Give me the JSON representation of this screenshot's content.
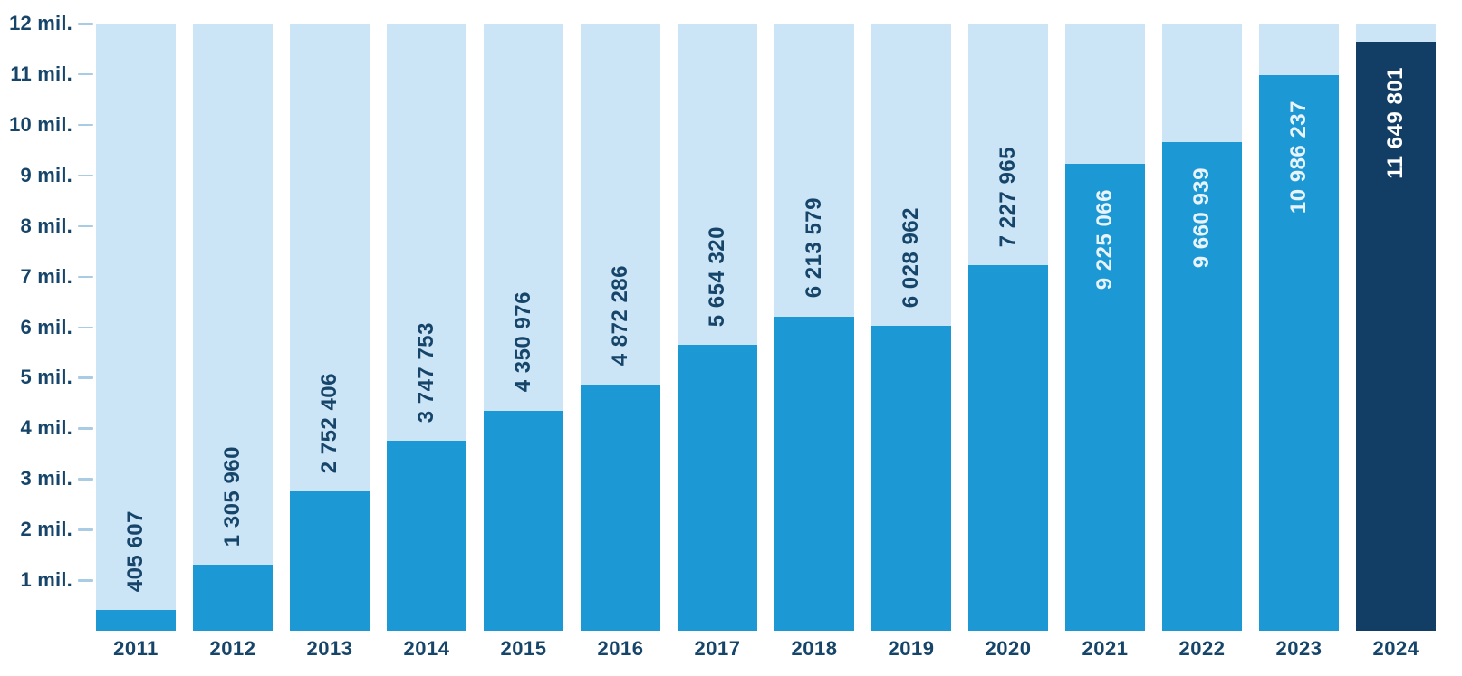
{
  "chart_data": {
    "type": "bar",
    "title": "",
    "xlabel": "",
    "ylabel": "",
    "ylim": [
      0,
      12000000
    ],
    "grid": "off",
    "legend": "none",
    "y_ticks": [
      {
        "label": "12 mil.",
        "value": 12000000
      },
      {
        "label": "11 mil.",
        "value": 11000000
      },
      {
        "label": "10 mil.",
        "value": 10000000
      },
      {
        "label": "9 mil.",
        "value": 9000000
      },
      {
        "label": "8 mil.",
        "value": 8000000
      },
      {
        "label": "7 mil.",
        "value": 7000000
      },
      {
        "label": "6 mil.",
        "value": 6000000
      },
      {
        "label": "5 mil.",
        "value": 5000000
      },
      {
        "label": "4 mil.",
        "value": 4000000
      },
      {
        "label": "3 mil.",
        "value": 3000000
      },
      {
        "label": "2 mil.",
        "value": 2000000
      },
      {
        "label": "1 mil.",
        "value": 1000000
      }
    ],
    "categories": [
      "2011",
      "2012",
      "2013",
      "2014",
      "2015",
      "2016",
      "2017",
      "2018",
      "2019",
      "2020",
      "2021",
      "2022",
      "2023",
      "2024"
    ],
    "values": [
      405607,
      1305960,
      2752406,
      3747753,
      4350976,
      4872286,
      5654320,
      6213579,
      6028962,
      7227965,
      9225066,
      9660939,
      10986237,
      11649801
    ],
    "bars": [
      {
        "year": "2011",
        "value": 405607,
        "label": "405 607",
        "label_position": "outside",
        "color_key": "primary"
      },
      {
        "year": "2012",
        "value": 1305960,
        "label": "1 305 960",
        "label_position": "outside",
        "color_key": "primary"
      },
      {
        "year": "2013",
        "value": 2752406,
        "label": "2 752 406",
        "label_position": "outside",
        "color_key": "primary"
      },
      {
        "year": "2014",
        "value": 3747753,
        "label": "3 747 753",
        "label_position": "outside",
        "color_key": "primary"
      },
      {
        "year": "2015",
        "value": 4350976,
        "label": "4 350 976",
        "label_position": "outside",
        "color_key": "primary"
      },
      {
        "year": "2016",
        "value": 4872286,
        "label": "4 872 286",
        "label_position": "outside",
        "color_key": "primary"
      },
      {
        "year": "2017",
        "value": 5654320,
        "label": "5 654 320",
        "label_position": "outside",
        "color_key": "primary"
      },
      {
        "year": "2018",
        "value": 6213579,
        "label": "6 213 579",
        "label_position": "outside",
        "color_key": "primary"
      },
      {
        "year": "2019",
        "value": 6028962,
        "label": "6 028 962",
        "label_position": "outside",
        "color_key": "primary"
      },
      {
        "year": "2020",
        "value": 7227965,
        "label": "7 227 965",
        "label_position": "outside",
        "color_key": "primary"
      },
      {
        "year": "2021",
        "value": 9225066,
        "label": "9 225 066",
        "label_position": "inside",
        "color_key": "primary"
      },
      {
        "year": "2022",
        "value": 9660939,
        "label": "9 660 939",
        "label_position": "inside",
        "color_key": "primary"
      },
      {
        "year": "2023",
        "value": 10986237,
        "label": "10 986 237",
        "label_position": "inside",
        "color_key": "primary"
      },
      {
        "year": "2024",
        "value": 11649801,
        "label": "11 649 801",
        "label_position": "inside",
        "color_key": "highlight"
      }
    ],
    "colors": {
      "bar_primary": "#1c99d5",
      "bar_highlight": "#123e66",
      "bar_track": "#cbe4f6",
      "label_dark": "#164569",
      "label_light": "#e9f3fb",
      "label_on_highlight": "#ffffff",
      "tick": "#a9cbe4"
    }
  }
}
